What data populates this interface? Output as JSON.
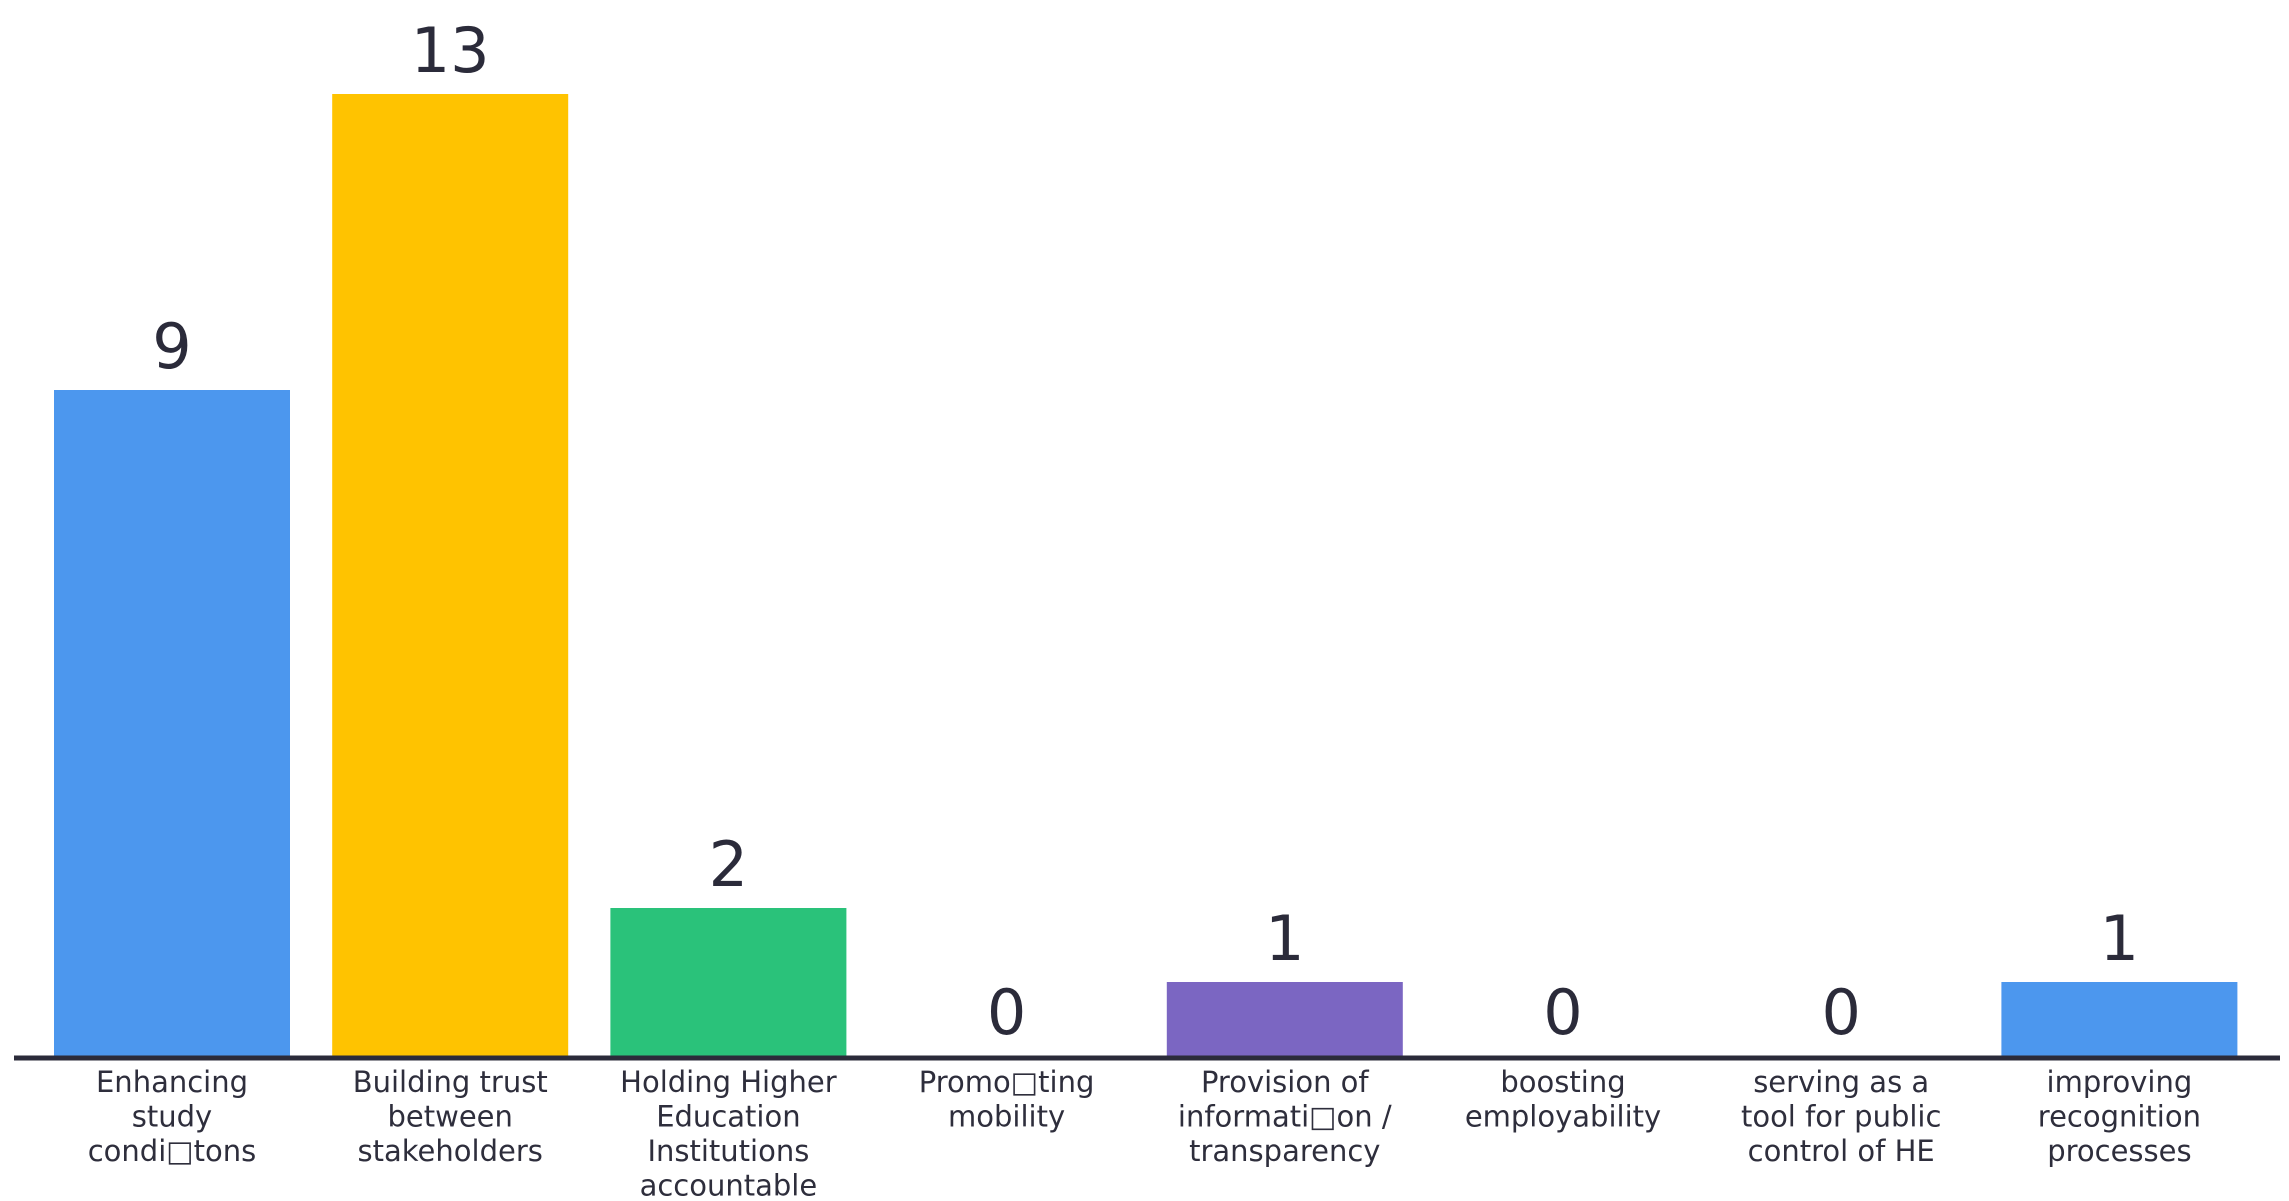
{
  "chart_data": {
    "type": "bar",
    "title": "",
    "xlabel": "",
    "ylabel": "",
    "ylim": [
      0,
      13
    ],
    "grid": false,
    "legend": "none",
    "categories": [
      "Enhancing study condi\u0000tons",
      "Building trust between stakeholders",
      "Holding Higher Education Institutions accountable",
      "Promo\u0000ting mobility",
      "Provision of informati\u0000on / transparency",
      "boosting employability",
      "serving as a tool for public control of HE",
      "improving recognition processes"
    ],
    "category_lines": [
      [
        "Enhancing",
        "study",
        "condi□tons"
      ],
      [
        "Building trust",
        "between",
        "stakeholders"
      ],
      [
        "Holding Higher",
        "Education",
        "Institutions",
        "accountable"
      ],
      [
        "Promo□ting",
        "mobility"
      ],
      [
        "Provision of",
        "informati□on /",
        "transparency"
      ],
      [
        "boosting",
        "employability"
      ],
      [
        "serving as a",
        "tool for public",
        "control of HE"
      ],
      [
        "improving",
        "recognition",
        "processes"
      ]
    ],
    "values": [
      9,
      13,
      2,
      0,
      1,
      0,
      0,
      1
    ],
    "value_labels": [
      "9",
      "13",
      "2",
      "0",
      "1",
      "0",
      "0",
      "1"
    ],
    "colors": [
      "#4c97ee",
      "#ffc300",
      "#2ac27a",
      "#4c97ee",
      "#7b66c2",
      "#4c97ee",
      "#4c97ee",
      "#4c97ee"
    ],
    "axis_color": "#2b2b3a"
  }
}
